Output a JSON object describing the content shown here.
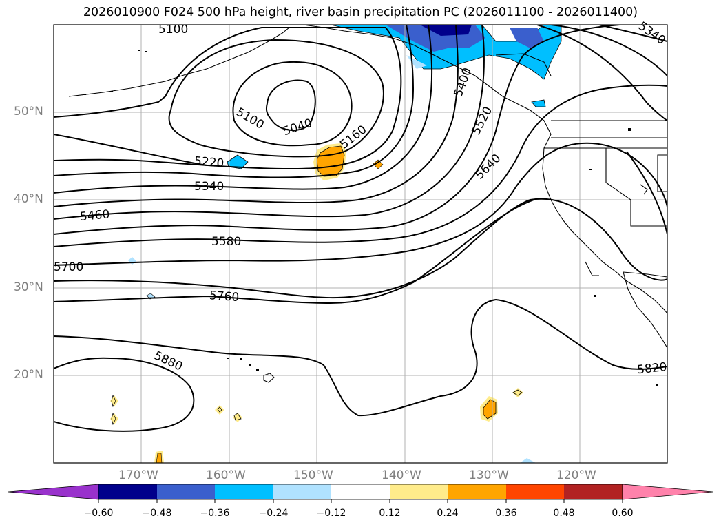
{
  "title": "2026010900 F024 500 hPa height, river basin precipitation PC (2026011100 - 2026011400)",
  "lat_labels": [
    "50°N",
    "40°N",
    "30°N",
    "20°N"
  ],
  "lon_labels": [
    "170°W",
    "160°W",
    "150°W",
    "140°W",
    "130°W",
    "120°W"
  ],
  "contour_labels": {
    "c5100a": "5100",
    "c5100b": "5100",
    "c5040": "5040",
    "c5160": "5160",
    "c5220": "5220",
    "c5340a": "5340",
    "c5340b": "5340",
    "c5400": "5400",
    "c5460": "5460",
    "c5520": "5520",
    "c5580": "5580",
    "c5640": "5640",
    "c5700": "5700",
    "c5760": "5760",
    "c5820": "5820",
    "c5880": "5880"
  },
  "colorbar": {
    "ticks": [
      "−0.60",
      "−0.48",
      "−0.36",
      "−0.24",
      "−0.12",
      "0.12",
      "0.24",
      "0.36",
      "0.48",
      "0.60"
    ],
    "colors": [
      "#9932cc",
      "#00008b",
      "#3a5fcd",
      "#00bfff",
      "#b0e2ff",
      "#ffffff",
      "#ffec8b",
      "#ffa500",
      "#ff4500",
      "#b22222",
      "#ff82ab"
    ]
  }
}
